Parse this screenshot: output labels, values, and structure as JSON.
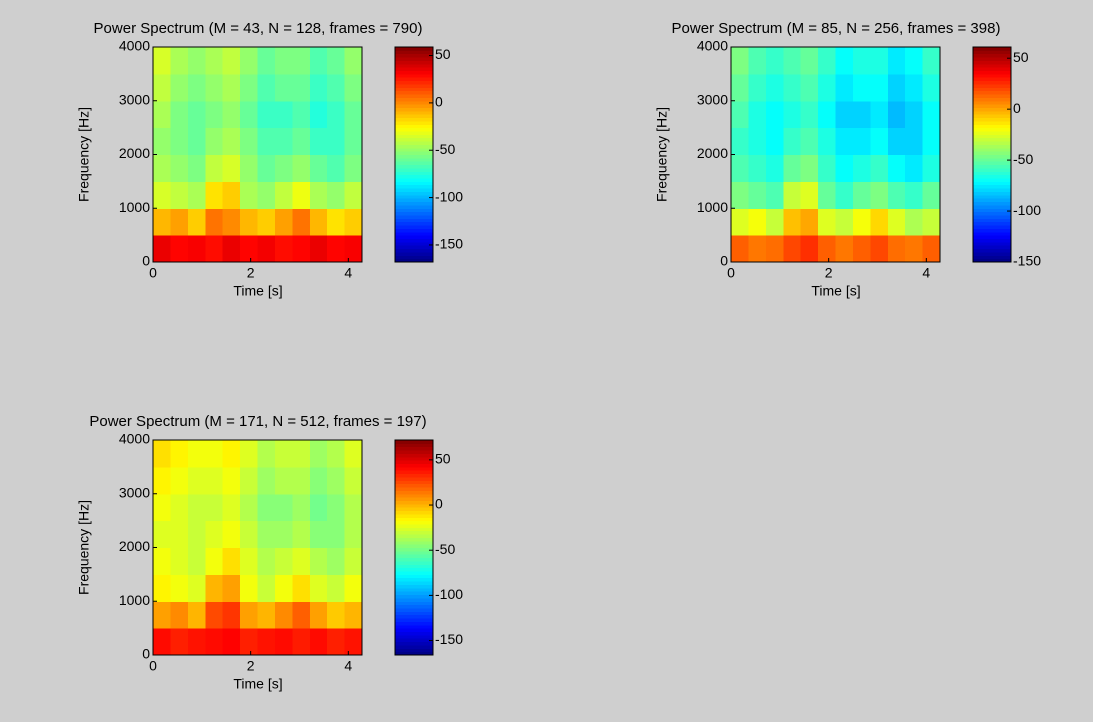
{
  "chart_data": [
    {
      "type": "heatmap",
      "title": "Power Spectrum (M = 43, N = 128, frames = 790)",
      "xlabel": "Time [s]",
      "ylabel": "Frequency [Hz]",
      "xlim": [
        0,
        4.28
      ],
      "ylim": [
        0,
        4000
      ],
      "xticks": [
        0,
        2,
        4
      ],
      "yticks": [
        0,
        1000,
        2000,
        3000,
        4000
      ],
      "colormap": "jet",
      "clim": [
        -168,
        59
      ],
      "cticks": [
        50,
        0,
        -50,
        -100,
        -150
      ],
      "z": [
        [
          35,
          30,
          32,
          28,
          35,
          30,
          33,
          28,
          30,
          35,
          30,
          32
        ],
        [
          -10,
          -5,
          -15,
          5,
          0,
          -10,
          -15,
          -5,
          5,
          -10,
          -20,
          -15
        ],
        [
          -35,
          -40,
          -45,
          -20,
          -15,
          -45,
          -50,
          -40,
          -30,
          -45,
          -50,
          -40
        ],
        [
          -45,
          -50,
          -55,
          -40,
          -35,
          -50,
          -60,
          -55,
          -50,
          -60,
          -65,
          -55
        ],
        [
          -50,
          -55,
          -60,
          -50,
          -45,
          -55,
          -65,
          -65,
          -60,
          -70,
          -70,
          -60
        ],
        [
          -45,
          -55,
          -60,
          -55,
          -50,
          -60,
          -70,
          -70,
          -65,
          -75,
          -70,
          -60
        ],
        [
          -40,
          -50,
          -55,
          -50,
          -45,
          -55,
          -65,
          -60,
          -60,
          -70,
          -65,
          -55
        ],
        [
          -35,
          -45,
          -50,
          -45,
          -40,
          -50,
          -60,
          -55,
          -55,
          -65,
          -60,
          -50
        ]
      ]
    },
    {
      "type": "heatmap",
      "title": "Power Spectrum (M = 85, N = 256, frames = 398)",
      "xlabel": "Time [s]",
      "ylabel": "Frequency [Hz]",
      "xlim": [
        0,
        4.28
      ],
      "ylim": [
        0,
        4000
      ],
      "xticks": [
        0,
        2,
        4
      ],
      "yticks": [
        0,
        1000,
        2000,
        3000,
        4000
      ],
      "colormap": "jet",
      "clim": [
        -150,
        61
      ],
      "cticks": [
        50,
        0,
        -50,
        -100,
        -150
      ],
      "z": [
        [
          15,
          10,
          12,
          20,
          25,
          15,
          10,
          15,
          20,
          12,
          10,
          15
        ],
        [
          -25,
          -20,
          -30,
          -5,
          0,
          -25,
          -30,
          -20,
          -10,
          -25,
          -35,
          -30
        ],
        [
          -45,
          -50,
          -55,
          -30,
          -25,
          -50,
          -60,
          -50,
          -45,
          -55,
          -60,
          -50
        ],
        [
          -55,
          -60,
          -65,
          -50,
          -45,
          -60,
          -70,
          -65,
          -60,
          -70,
          -75,
          -65
        ],
        [
          -60,
          -65,
          -70,
          -60,
          -55,
          -65,
          -75,
          -75,
          -70,
          -80,
          -80,
          -70
        ],
        [
          -55,
          -65,
          -70,
          -65,
          -60,
          -70,
          -80,
          -80,
          -75,
          -85,
          -80,
          -70
        ],
        [
          -50,
          -60,
          -65,
          -60,
          -55,
          -65,
          -75,
          -70,
          -70,
          -80,
          -75,
          -65
        ],
        [
          -45,
          -55,
          -60,
          -55,
          -50,
          -60,
          -70,
          -65,
          -65,
          -75,
          -70,
          -60
        ]
      ]
    },
    {
      "type": "heatmap",
      "title": "Power Spectrum (M = 171, N = 512, frames = 197)",
      "xlabel": "Time [s]",
      "ylabel": "Frequency [Hz]",
      "xlim": [
        0,
        4.28
      ],
      "ylim": [
        0,
        4000
      ],
      "xticks": [
        0,
        2,
        4
      ],
      "yticks": [
        0,
        1000,
        2000,
        3000,
        4000
      ],
      "colormap": "jet",
      "clim": [
        -166,
        72
      ],
      "cticks": [
        50,
        0,
        -50,
        -100,
        -150
      ],
      "z": [
        [
          40,
          35,
          38,
          40,
          42,
          35,
          38,
          40,
          36,
          40,
          35,
          38
        ],
        [
          5,
          10,
          0,
          25,
          30,
          5,
          0,
          10,
          20,
          5,
          -5,
          0
        ],
        [
          -15,
          -20,
          -25,
          0,
          5,
          -20,
          -30,
          -20,
          -10,
          -25,
          -30,
          -20
        ],
        [
          -20,
          -25,
          -30,
          -20,
          -10,
          -25,
          -35,
          -30,
          -25,
          -35,
          -40,
          -30
        ],
        [
          -25,
          -25,
          -30,
          -25,
          -20,
          -30,
          -40,
          -40,
          -35,
          -45,
          -45,
          -35
        ],
        [
          -20,
          -25,
          -30,
          -30,
          -25,
          -35,
          -45,
          -45,
          -40,
          -50,
          -45,
          -35
        ],
        [
          -15,
          -20,
          -25,
          -25,
          -20,
          -30,
          -40,
          -35,
          -35,
          -45,
          -40,
          -30
        ],
        [
          -10,
          -15,
          -20,
          -20,
          -15,
          -25,
          -35,
          -30,
          -30,
          -40,
          -35,
          -25
        ]
      ]
    }
  ]
}
